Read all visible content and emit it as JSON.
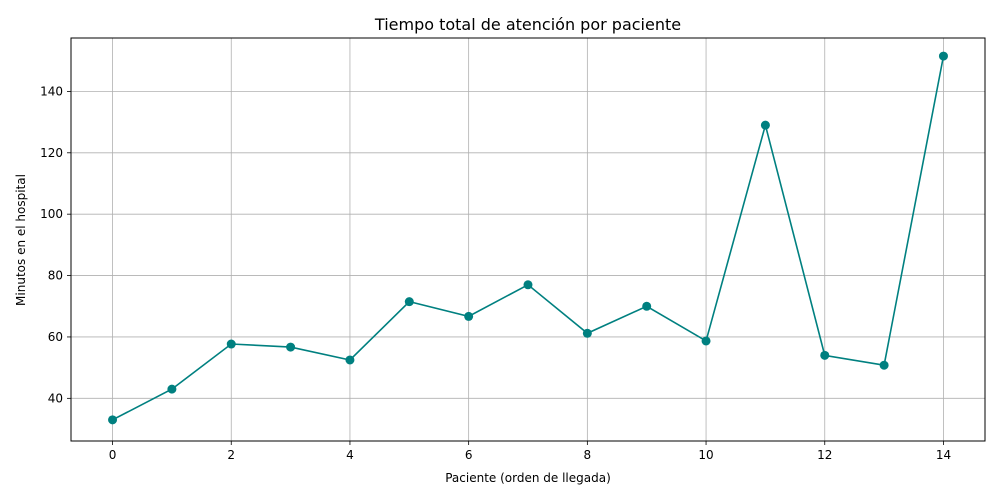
{
  "chart_data": {
    "type": "line",
    "title": "Tiempo total de atención por paciente",
    "xlabel": "Paciente (orden de llegada)",
    "ylabel": "Minutos en el hospital",
    "x": [
      0,
      1,
      2,
      3,
      4,
      5,
      6,
      7,
      8,
      9,
      10,
      11,
      12,
      13,
      14
    ],
    "series": [
      {
        "name": "",
        "values": [
          33,
          43,
          57.7,
          56.7,
          52.5,
          71.5,
          66.7,
          77,
          61.2,
          70,
          58.7,
          129,
          54,
          50.8,
          151.5
        ]
      }
    ],
    "xlim": [
      -0.7,
      14.7
    ],
    "ylim": [
      26.1,
      157.4
    ],
    "xticks": [
      0,
      2,
      4,
      6,
      8,
      10,
      12,
      14
    ],
    "yticks": [
      40,
      60,
      80,
      100,
      120,
      140
    ],
    "grid": true,
    "color": "#008080"
  }
}
